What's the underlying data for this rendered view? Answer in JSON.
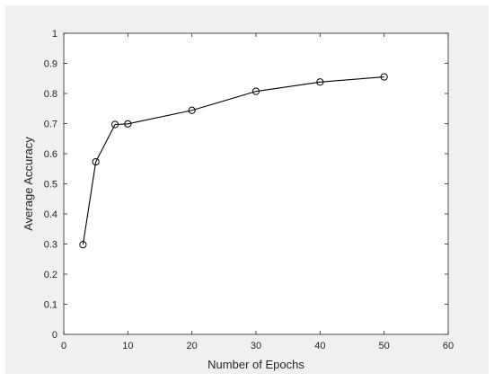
{
  "chart_data": {
    "type": "line",
    "xlabel": "Number of Epochs",
    "ylabel": "Average Accuracy",
    "xlim": [
      0,
      60
    ],
    "ylim": [
      0,
      1
    ],
    "xticks": [
      0,
      10,
      20,
      30,
      40,
      50,
      60
    ],
    "yticks": [
      0,
      0.1,
      0.2,
      0.3,
      0.4,
      0.5,
      0.6,
      0.7,
      0.8,
      0.9,
      1
    ],
    "xtick_labels": [
      "0",
      "10",
      "20",
      "30",
      "40",
      "50",
      "60"
    ],
    "ytick_labels": [
      "0",
      "0.1",
      "0.2",
      "0.3",
      "0.4",
      "0.5",
      "0.6",
      "0.7",
      "0.8",
      "0.9",
      "1"
    ],
    "grid": false,
    "marker": "open-circle",
    "series": [
      {
        "x": [
          3,
          5,
          8,
          10,
          20,
          30,
          40,
          50
        ],
        "y": [
          0.298,
          0.573,
          0.697,
          0.699,
          0.744,
          0.807,
          0.838,
          0.855
        ],
        "color": "#000000"
      }
    ],
    "colors": {
      "figure_background": "#f0f0f0",
      "axes_background": "#ffffff",
      "axes_color": "#262626"
    }
  }
}
